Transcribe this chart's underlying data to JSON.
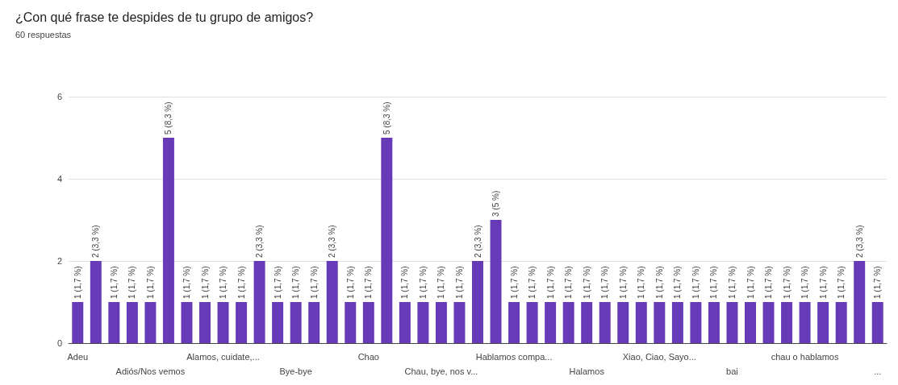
{
  "chart_data": {
    "type": "bar",
    "title": "¿Con qué frase te despides de tu grupo de amigos?",
    "subtitle": "60 respuestas",
    "categories": [
      "Adeu",
      null,
      null,
      null,
      "Adiós/Nos vemos",
      null,
      null,
      null,
      "Alamos, cuidate,...",
      null,
      null,
      null,
      "Bye-bye",
      null,
      null,
      null,
      "Chao",
      null,
      null,
      null,
      "Chau, bye, nos v...",
      null,
      null,
      null,
      "Hablamos compa...",
      null,
      null,
      null,
      "Halamos",
      null,
      null,
      null,
      "Xiao, Ciao, Sayo...",
      null,
      null,
      null,
      "bai",
      null,
      null,
      null,
      "chau o hablamos",
      null,
      null,
      null,
      "..."
    ],
    "values": [
      1,
      2,
      1,
      1,
      1,
      5,
      1,
      1,
      1,
      1,
      2,
      1,
      1,
      1,
      2,
      1,
      1,
      5,
      1,
      1,
      1,
      1,
      2,
      3,
      1,
      1,
      1,
      1,
      1,
      1,
      1,
      1,
      1,
      1,
      1,
      1,
      1,
      1,
      1,
      1,
      1,
      1,
      1,
      2,
      1
    ],
    "value_labels": [
      "1 (1,7 %)",
      "2 (3,3 %)",
      "1 (1,7 %)",
      "1 (1,7 %)",
      "1 (1,7 %)",
      "5 (8,3 %)",
      "1 (1,7 %)",
      "1 (1,7 %)",
      "1 (1,7 %)",
      "1 (1,7 %)",
      "2 (3,3 %)",
      "1 (1,7 %)",
      "1 (1,7 %)",
      "1 (1,7 %)",
      "2 (3,3 %)",
      "1 (1,7 %)",
      "1 (1,7 %)",
      "5 (8,3 %)",
      "1 (1,7 %)",
      "1 (1,7 %)",
      "1 (1,7 %)",
      "1 (1,7 %)",
      "2 (3,3 %)",
      "3 (5 %)",
      "1 (1,7 %)",
      "1 (1,7 %)",
      "1 (1,7 %)",
      "1 (1,7 %)",
      "1 (1,7 %)",
      "1 (1,7 %)",
      "1 (1,7 %)",
      "1 (1,7 %)",
      "1 (1,7 %)",
      "1 (1,7 %)",
      "1 (1,7 %)",
      "1 (1,7 %)",
      "1 (1,7 %)",
      "1 (1,7 %)",
      "1 (1,7 %)",
      "1 (1,7 %)",
      "1 (1,7 %)",
      "1 (1,7 %)",
      "1 (1,7 %)",
      "2 (3,3 %)",
      "1 (1,7 %)"
    ],
    "color": "#673ab7",
    "ylim": [
      0,
      6
    ],
    "yticks": [
      0,
      2,
      4,
      6
    ],
    "grid": "y"
  }
}
